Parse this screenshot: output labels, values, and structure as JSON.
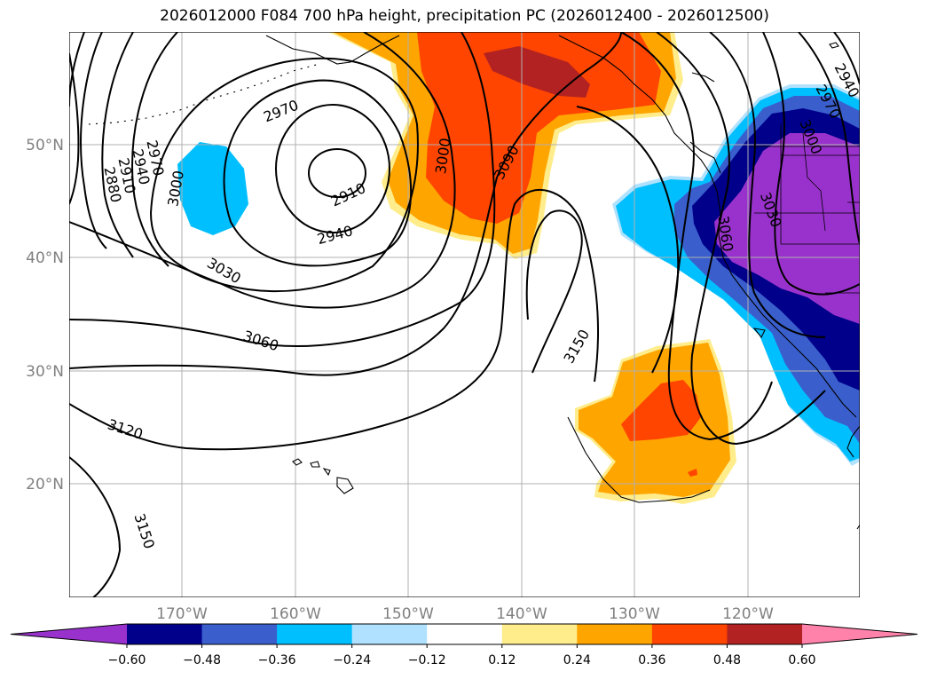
{
  "title": "2026012000 F084 700 hPa height, precipitation PC (2026012400 - 2026012500)",
  "lat_labels": [
    "50°N",
    "40°N",
    "30°N",
    "20°N"
  ],
  "lon_labels": [
    "170°W",
    "160°W",
    "150°W",
    "140°W",
    "130°W",
    "120°W"
  ],
  "contour_labels": [
    "2970",
    "2910",
    "2940",
    "3000",
    "3090",
    "2880",
    "2910",
    "2940",
    "2970",
    "3000",
    "3030",
    "3060",
    "3120",
    "3150",
    "3150",
    "2940",
    "2970",
    "3000",
    "3030",
    "3060"
  ],
  "colorbar": {
    "ticks": [
      "−0.60",
      "−0.48",
      "−0.36",
      "−0.24",
      "−0.12",
      "0.12",
      "0.24",
      "0.36",
      "0.48",
      "0.60"
    ],
    "colors": [
      "#9932cc",
      "#00008b",
      "#3a5fcd",
      "#00bfff",
      "#b0e2ff",
      "#ffffff",
      "#ffec8b",
      "#ffa500",
      "#ff4500",
      "#b22222",
      "#ff82ab"
    ]
  }
}
